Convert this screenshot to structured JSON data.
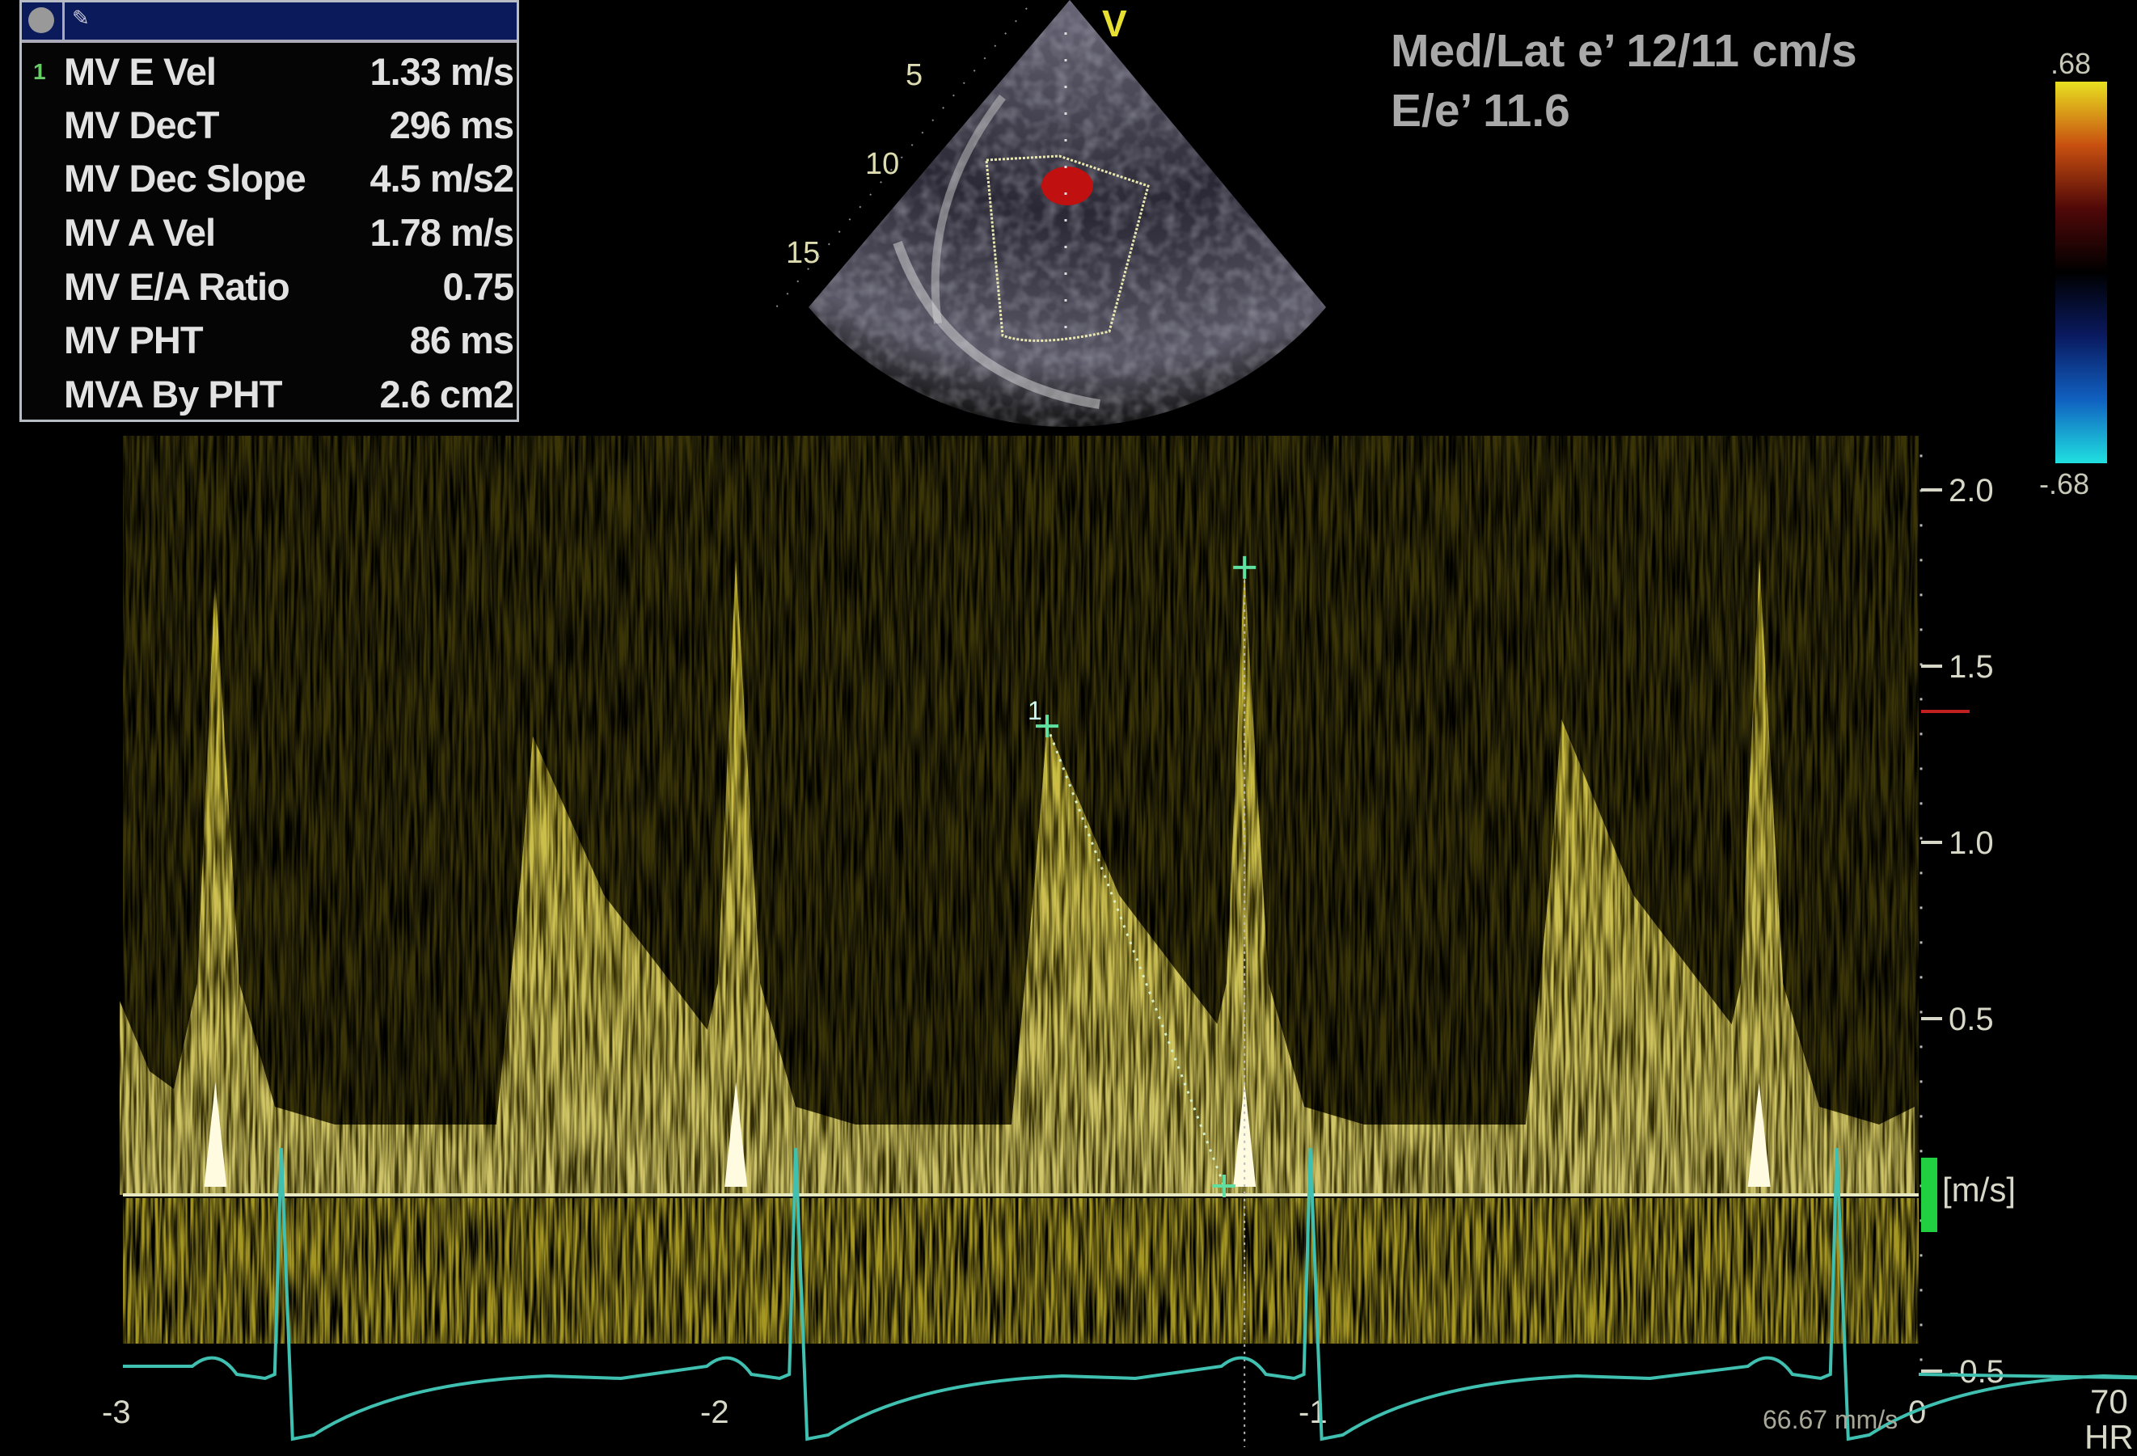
{
  "measurements": {
    "active_index": "1",
    "rows": [
      {
        "label": "MV E Vel",
        "value": "1.33 m/s"
      },
      {
        "label": "MV DecT",
        "value": "296 ms"
      },
      {
        "label": "MV Dec Slope",
        "value": "4.5 m/s2"
      },
      {
        "label": "MV A Vel",
        "value": "1.78 m/s"
      },
      {
        "label": "MV E/A Ratio",
        "value": "0.75"
      },
      {
        "label": "MV PHT",
        "value": "86 ms"
      },
      {
        "label": "MVA By PHT",
        "value": "2.6 cm2"
      }
    ]
  },
  "annotations": {
    "line1": "Med/Lat e’ 12/11 cm/s",
    "line2": "E/e’ 11.6"
  },
  "sector_view": {
    "orientation_marker": "V",
    "depth_labels": [
      "5",
      "10",
      "15"
    ]
  },
  "color_bar": {
    "max_label": ".68",
    "min_label": "-.68",
    "colors": [
      "#e8e020",
      "#c85010",
      "#500808",
      "#000000",
      "#0a1a60",
      "#1060c0",
      "#20e0e0"
    ]
  },
  "doppler": {
    "velocity_ticks": [
      "2.0",
      "1.5",
      "1.0",
      "0.5",
      "-0.5"
    ],
    "velocity_values": [
      2.0,
      1.5,
      1.0,
      0.5,
      -0.5
    ],
    "unit_label": "[m/s]",
    "time_ticks": [
      "-3",
      "-2",
      "-1",
      "0"
    ],
    "time_values": [
      -3,
      -2,
      -1,
      0
    ],
    "sweep_speed": "66.67 mm/s",
    "caliper_label": "1",
    "spectrum_color": "#d8c830",
    "ecg_color": "#3fc0b0",
    "e_waves": [
      {
        "t": -2.31,
        "v": 1.3
      },
      {
        "t": -1.45,
        "v": 1.33
      },
      {
        "t": -0.59,
        "v": 1.35
      }
    ],
    "a_waves": [
      {
        "t": -2.84,
        "v": 1.75
      },
      {
        "t": -1.97,
        "v": 1.8
      },
      {
        "t": -1.12,
        "v": 1.78
      },
      {
        "t": -0.26,
        "v": 1.8
      }
    ],
    "qrs_times": [
      -2.73,
      -1.87,
      -1.01,
      -0.13
    ]
  },
  "heart_rate": {
    "value": "70",
    "label": "HR"
  }
}
